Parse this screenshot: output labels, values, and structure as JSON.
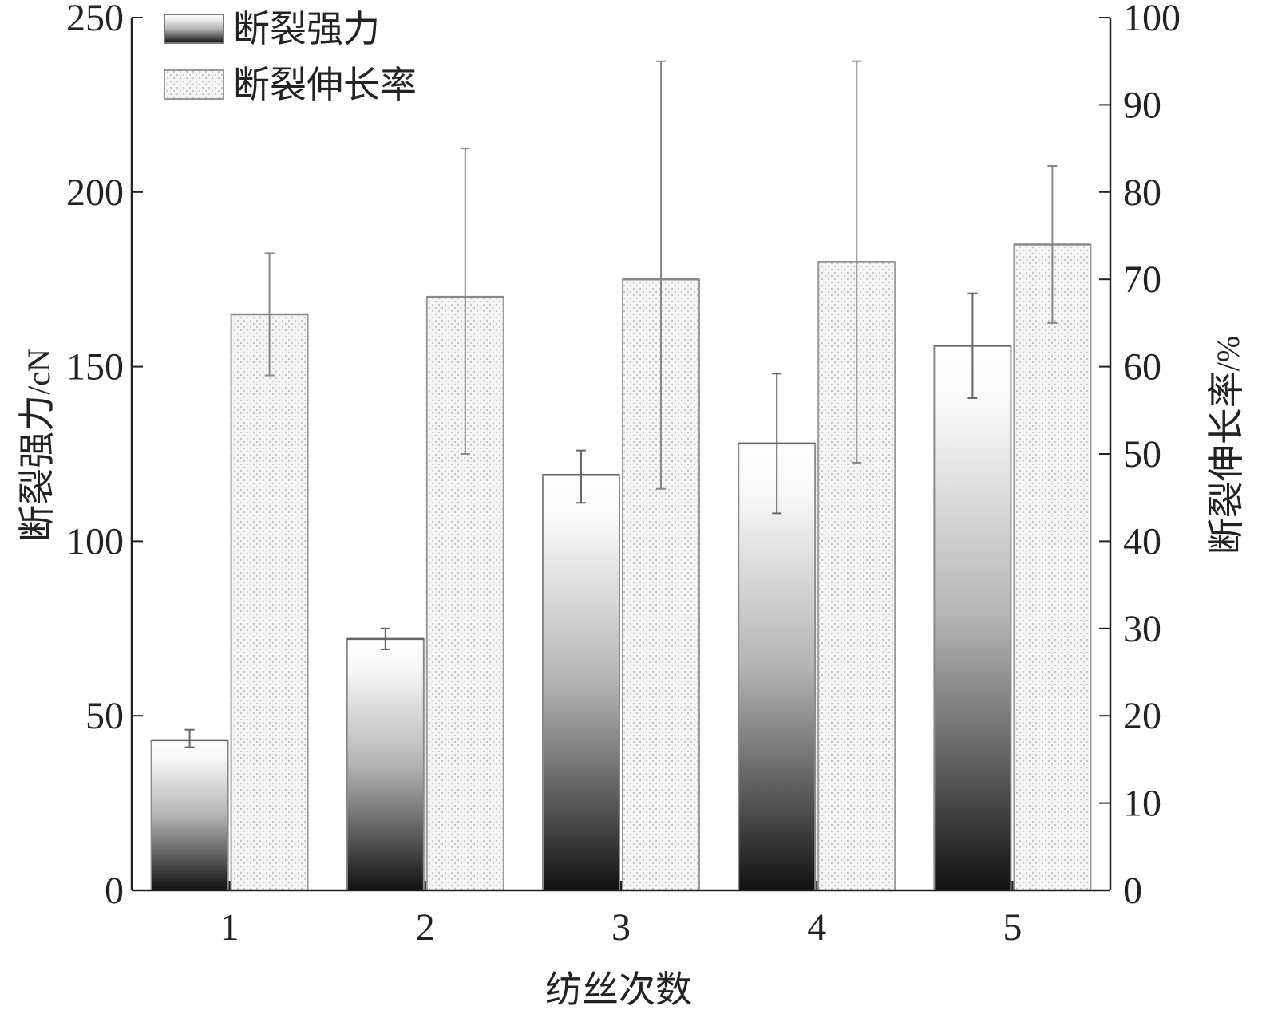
{
  "chart_data": {
    "type": "bar",
    "categories": [
      "1",
      "2",
      "3",
      "4",
      "5"
    ],
    "xlabel": "纺丝次数",
    "ylabel_left": "断裂强力",
    "ylabel_left_unit": "/cN",
    "ylabel_right": "断裂伸长率",
    "ylabel_right_unit": "/%",
    "ylim_left": [
      0,
      250
    ],
    "ylim_right": [
      0,
      100
    ],
    "yticks_left": [
      "0",
      "50",
      "100",
      "150",
      "200",
      "250"
    ],
    "yticks_right": [
      "0",
      "10",
      "20",
      "30",
      "40",
      "50",
      "60",
      "70",
      "80",
      "90",
      "100"
    ],
    "legend_position": "top-left",
    "grid": false,
    "series": [
      {
        "name": "断裂强力",
        "axis": "left",
        "fill": "gradient-dark",
        "values": [
          43,
          72,
          119,
          128,
          156
        ],
        "error_low": [
          41,
          69,
          111,
          108,
          141
        ],
        "error_high": [
          46,
          75,
          126,
          148,
          171
        ]
      },
      {
        "name": "断裂伸长率",
        "axis": "right",
        "fill": "dotted-light",
        "values": [
          66,
          68,
          70,
          72,
          74
        ],
        "error_low": [
          59,
          50,
          46,
          49,
          65
        ],
        "error_high": [
          73,
          85,
          95,
          95,
          83
        ]
      }
    ]
  }
}
